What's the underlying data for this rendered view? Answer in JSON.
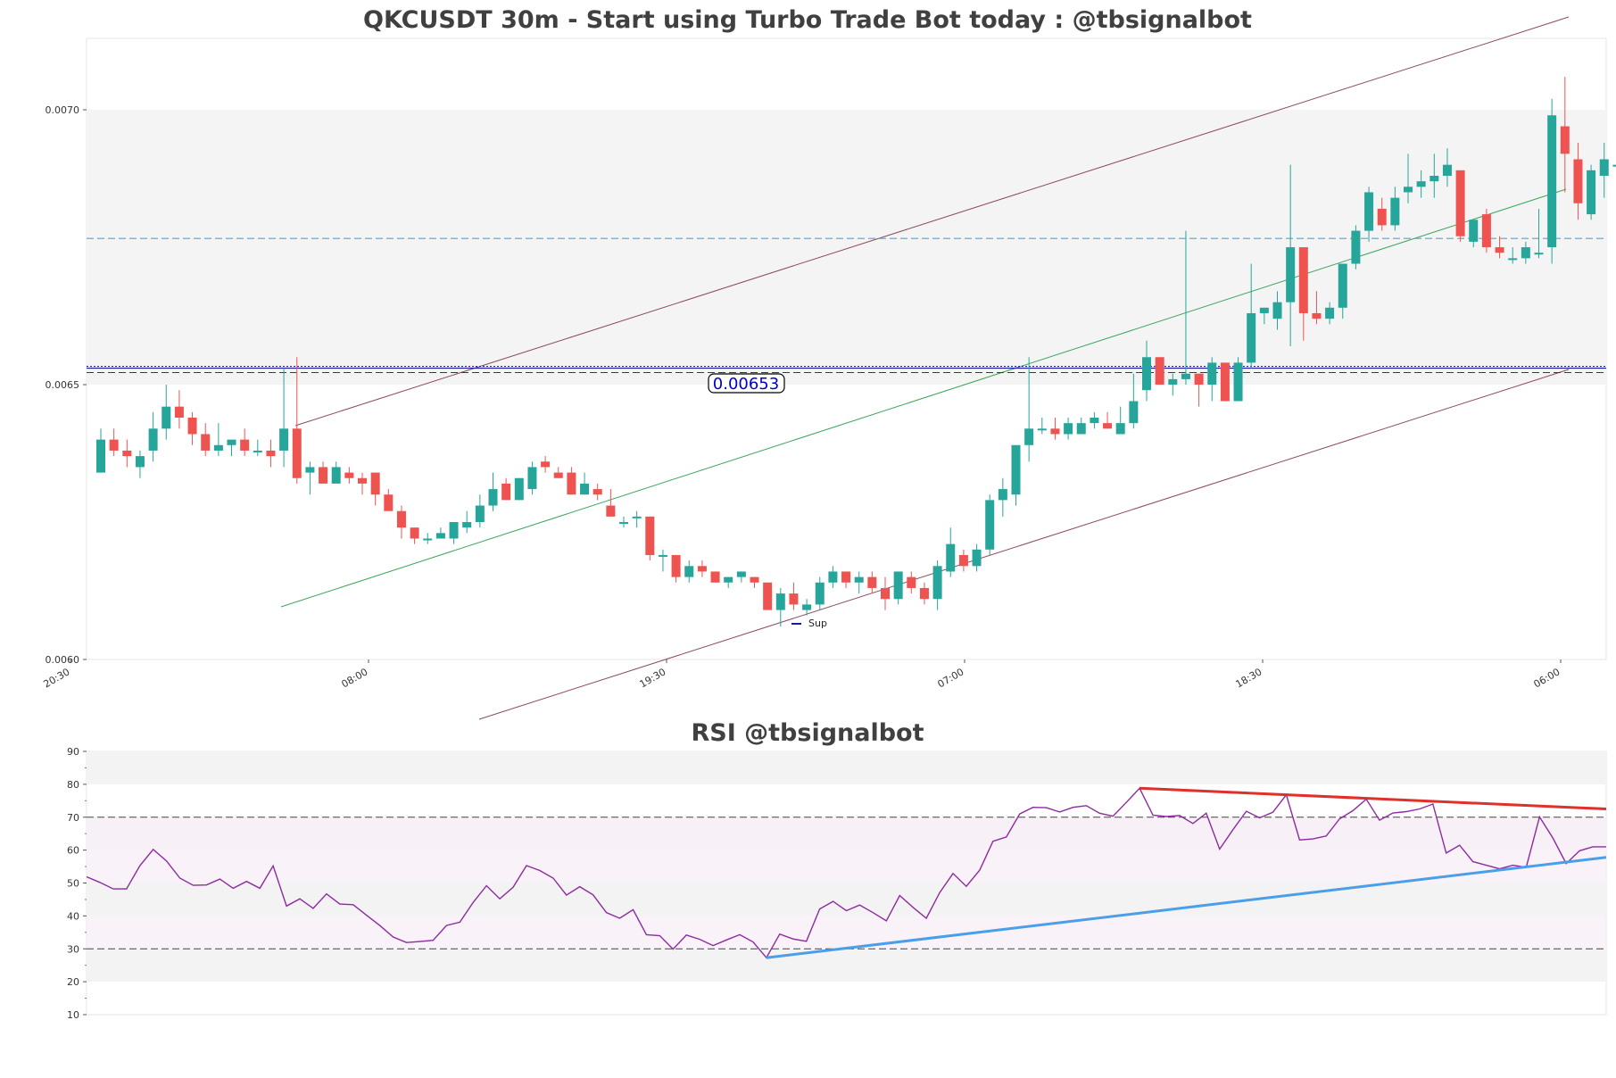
{
  "main_title": "QKCUSDT 30m - Start using Turbo Trade Bot today : @tbsignalbot",
  "rsi_title": "RSI @tbsignalbot",
  "price_label": "0.00653",
  "legend_label": "Sup",
  "colors": {
    "up": "#26a69a",
    "down": "#ef5350",
    "channel": "#8b4a5e",
    "midline": "#3aa55a",
    "support": "#1a1a9e",
    "resistance_dash": "#4fa3d9",
    "rsi_line": "#8e2aa0",
    "rsi_down_trend": "#e0302a",
    "rsi_up_trend": "#4a9fe8"
  },
  "chart_data": [
    {
      "type": "candlestick",
      "title": "QKCUSDT 30m - Start using Turbo Trade Bot today : @tbsignalbot",
      "ylim": [
        0.006,
        0.00713
      ],
      "yticks": [
        "0.0060",
        "0.0065",
        "0.0070"
      ],
      "xticks": [
        "20:30",
        "08:00",
        "19:30",
        "07:00",
        "18:30",
        "06:00"
      ],
      "shaded_band": [
        0.0065,
        0.007
      ],
      "support_level": 0.00653,
      "resistance_level": 0.006766,
      "candles": [
        [
          0.00634,
          0.00642,
          0.00634,
          0.0064
        ],
        [
          0.0064,
          0.00642,
          0.00637,
          0.00638
        ],
        [
          0.00638,
          0.0064,
          0.00635,
          0.00637
        ],
        [
          0.00635,
          0.00638,
          0.00633,
          0.00637
        ],
        [
          0.00638,
          0.00645,
          0.00636,
          0.00642
        ],
        [
          0.00642,
          0.0065,
          0.0064,
          0.00646
        ],
        [
          0.00646,
          0.00649,
          0.00642,
          0.00644
        ],
        [
          0.00644,
          0.00645,
          0.00639,
          0.00641
        ],
        [
          0.00641,
          0.00643,
          0.00637,
          0.00638
        ],
        [
          0.00638,
          0.00643,
          0.00637,
          0.00639
        ],
        [
          0.00639,
          0.0064,
          0.00637,
          0.0064
        ],
        [
          0.0064,
          0.00642,
          0.00637,
          0.00638
        ],
        [
          0.00638,
          0.0064,
          0.00637,
          0.00638
        ],
        [
          0.00638,
          0.0064,
          0.00635,
          0.00637
        ],
        [
          0.00638,
          0.00653,
          0.00635,
          0.00642
        ],
        [
          0.00642,
          0.00655,
          0.00632,
          0.00633
        ],
        [
          0.00634,
          0.00636,
          0.0063,
          0.00635
        ],
        [
          0.00635,
          0.00636,
          0.00632,
          0.00632
        ],
        [
          0.00632,
          0.00636,
          0.00632,
          0.00635
        ],
        [
          0.00634,
          0.00635,
          0.00632,
          0.00633
        ],
        [
          0.00633,
          0.00634,
          0.0063,
          0.00632
        ],
        [
          0.00634,
          0.00634,
          0.00628,
          0.0063
        ],
        [
          0.0063,
          0.00631,
          0.00627,
          0.00627
        ],
        [
          0.00627,
          0.00628,
          0.00622,
          0.00624
        ],
        [
          0.00624,
          0.00624,
          0.00621,
          0.00622
        ],
        [
          0.00622,
          0.00623,
          0.00621,
          0.00622
        ],
        [
          0.00622,
          0.00624,
          0.00622,
          0.00623
        ],
        [
          0.00622,
          0.00625,
          0.00621,
          0.00625
        ],
        [
          0.00624,
          0.00627,
          0.00623,
          0.00625
        ],
        [
          0.00625,
          0.0063,
          0.00624,
          0.00628
        ],
        [
          0.00628,
          0.00634,
          0.00627,
          0.00631
        ],
        [
          0.00632,
          0.00633,
          0.00629,
          0.00629
        ],
        [
          0.00629,
          0.00633,
          0.00629,
          0.00633
        ],
        [
          0.00631,
          0.00636,
          0.0063,
          0.00635
        ],
        [
          0.00636,
          0.00637,
          0.00634,
          0.00635
        ],
        [
          0.00634,
          0.00635,
          0.00633,
          0.00633
        ],
        [
          0.00634,
          0.00635,
          0.0063,
          0.0063
        ],
        [
          0.0063,
          0.00634,
          0.0063,
          0.00632
        ],
        [
          0.00631,
          0.00632,
          0.00629,
          0.0063
        ],
        [
          0.00628,
          0.00631,
          0.00626,
          0.00626
        ],
        [
          0.00625,
          0.00626,
          0.00624,
          0.00625
        ],
        [
          0.00626,
          0.00627,
          0.00624,
          0.00626
        ],
        [
          0.00626,
          0.00626,
          0.00618,
          0.00619
        ],
        [
          0.00619,
          0.0062,
          0.00616,
          0.00619
        ],
        [
          0.00619,
          0.00619,
          0.00614,
          0.00615
        ],
        [
          0.00615,
          0.00618,
          0.00614,
          0.00617
        ],
        [
          0.00617,
          0.00618,
          0.00615,
          0.00616
        ],
        [
          0.00616,
          0.00616,
          0.00614,
          0.00614
        ],
        [
          0.00614,
          0.00615,
          0.00613,
          0.00615
        ],
        [
          0.00615,
          0.00616,
          0.00614,
          0.00616
        ],
        [
          0.00615,
          0.00615,
          0.00613,
          0.00614
        ],
        [
          0.00614,
          0.00614,
          0.00609,
          0.00609
        ],
        [
          0.00609,
          0.00613,
          0.00606,
          0.00612
        ],
        [
          0.00612,
          0.00614,
          0.00609,
          0.0061
        ],
        [
          0.00609,
          0.00611,
          0.00608,
          0.0061
        ],
        [
          0.0061,
          0.00615,
          0.00609,
          0.00614
        ],
        [
          0.00614,
          0.00617,
          0.00613,
          0.00616
        ],
        [
          0.00616,
          0.00616,
          0.00613,
          0.00614
        ],
        [
          0.00614,
          0.00616,
          0.00612,
          0.00615
        ],
        [
          0.00615,
          0.00616,
          0.00612,
          0.00613
        ],
        [
          0.00613,
          0.00615,
          0.00609,
          0.00611
        ],
        [
          0.00611,
          0.00616,
          0.0061,
          0.00616
        ],
        [
          0.00615,
          0.00616,
          0.00612,
          0.00613
        ],
        [
          0.00613,
          0.00614,
          0.0061,
          0.00611
        ],
        [
          0.00611,
          0.00618,
          0.00609,
          0.00617
        ],
        [
          0.00616,
          0.00624,
          0.00615,
          0.00621
        ],
        [
          0.00619,
          0.0062,
          0.00616,
          0.00617
        ],
        [
          0.00617,
          0.00621,
          0.00616,
          0.0062
        ],
        [
          0.0062,
          0.0063,
          0.00619,
          0.00629
        ],
        [
          0.00629,
          0.00633,
          0.00626,
          0.00631
        ],
        [
          0.0063,
          0.00639,
          0.00628,
          0.00639
        ],
        [
          0.00639,
          0.00655,
          0.00636,
          0.00642
        ],
        [
          0.00642,
          0.00644,
          0.00641,
          0.00642
        ],
        [
          0.00642,
          0.00644,
          0.0064,
          0.00641
        ],
        [
          0.00641,
          0.00644,
          0.0064,
          0.00643
        ],
        [
          0.00641,
          0.00644,
          0.00641,
          0.00643
        ],
        [
          0.00643,
          0.00645,
          0.00642,
          0.00644
        ],
        [
          0.00643,
          0.00645,
          0.00642,
          0.00642
        ],
        [
          0.00641,
          0.00646,
          0.00641,
          0.00643
        ],
        [
          0.00643,
          0.00652,
          0.00642,
          0.00647
        ],
        [
          0.00649,
          0.00658,
          0.00647,
          0.00655
        ],
        [
          0.00655,
          0.00655,
          0.0065,
          0.0065
        ],
        [
          0.0065,
          0.00652,
          0.00648,
          0.00651
        ],
        [
          0.00651,
          0.00678,
          0.0065,
          0.00652
        ],
        [
          0.00652,
          0.00652,
          0.00646,
          0.0065
        ],
        [
          0.0065,
          0.00655,
          0.00647,
          0.00654
        ],
        [
          0.00654,
          0.00654,
          0.00647,
          0.00647
        ],
        [
          0.00647,
          0.00655,
          0.00647,
          0.00654
        ],
        [
          0.00654,
          0.00672,
          0.00653,
          0.00663
        ],
        [
          0.00663,
          0.00664,
          0.00661,
          0.00664
        ],
        [
          0.00662,
          0.00667,
          0.0066,
          0.00665
        ],
        [
          0.00665,
          0.0069,
          0.00657,
          0.00675
        ],
        [
          0.00675,
          0.00675,
          0.00658,
          0.00663
        ],
        [
          0.00663,
          0.00667,
          0.00661,
          0.00662
        ],
        [
          0.00662,
          0.00665,
          0.00661,
          0.00664
        ],
        [
          0.00664,
          0.00672,
          0.00662,
          0.00672
        ],
        [
          0.00672,
          0.00679,
          0.00671,
          0.00678
        ],
        [
          0.00678,
          0.00686,
          0.00676,
          0.00685
        ],
        [
          0.00682,
          0.00684,
          0.00678,
          0.00679
        ],
        [
          0.00679,
          0.00686,
          0.00678,
          0.00684
        ],
        [
          0.00685,
          0.00692,
          0.00683,
          0.00686
        ],
        [
          0.00686,
          0.00689,
          0.00684,
          0.00687
        ],
        [
          0.00687,
          0.00692,
          0.00684,
          0.00688
        ],
        [
          0.00688,
          0.00693,
          0.00686,
          0.0069
        ],
        [
          0.00689,
          0.00689,
          0.00676,
          0.00677
        ],
        [
          0.00676,
          0.0068,
          0.00675,
          0.0068
        ],
        [
          0.00681,
          0.00682,
          0.00674,
          0.00675
        ],
        [
          0.00675,
          0.00677,
          0.00673,
          0.00674
        ],
        [
          0.00673,
          0.00675,
          0.00672,
          0.00673
        ],
        [
          0.00673,
          0.00676,
          0.00672,
          0.00675
        ],
        [
          0.00674,
          0.00682,
          0.00673,
          0.00674
        ],
        [
          0.00675,
          0.00702,
          0.00672,
          0.00699
        ],
        [
          0.00697,
          0.00706,
          0.00685,
          0.00692
        ],
        [
          0.00691,
          0.00694,
          0.0068,
          0.00683
        ],
        [
          0.00681,
          0.0069,
          0.0068,
          0.00689
        ],
        [
          0.00688,
          0.00694,
          0.00684,
          0.00691
        ],
        [
          0.0069,
          0.00696,
          0.00687,
          0.0069
        ]
      ]
    },
    {
      "type": "line",
      "title": "RSI @tbsignalbot",
      "ylim": [
        10,
        90
      ],
      "yticks": [
        10,
        20,
        30,
        40,
        50,
        60,
        70,
        80,
        90
      ],
      "overbought": 70,
      "oversold": 30,
      "values": [
        51.9,
        50.2,
        48.2,
        48.2,
        55.3,
        60.2,
        56.7,
        51.5,
        49.3,
        49.4,
        51.2,
        48.4,
        50.5,
        48.4,
        55.2,
        43.0,
        45.2,
        42.3,
        46.7,
        43.6,
        43.4,
        40.2,
        37.1,
        33.6,
        31.9,
        32.2,
        32.6,
        37.1,
        38.1,
        44.1,
        49.2,
        45.2,
        48.7,
        55.3,
        53.8,
        51.5,
        46.3,
        48.9,
        46.4,
        41.0,
        39.3,
        41.9,
        34.3,
        34.0,
        29.9,
        34.2,
        32.9,
        31.0,
        32.7,
        34.3,
        32.1,
        27.3,
        34.5,
        33.0,
        32.3,
        42.1,
        44.4,
        41.6,
        43.3,
        41.0,
        38.5,
        46.2,
        42.6,
        39.3,
        47.1,
        52.9,
        49.0,
        53.9,
        62.7,
        64.0,
        71.0,
        73.0,
        72.9,
        71.6,
        73.0,
        73.5,
        71.2,
        70.3,
        74.5,
        78.8,
        70.6,
        70.2,
        70.5,
        68.1,
        71.2,
        60.3,
        66.2,
        71.8,
        69.8,
        71.5,
        76.8,
        63.1,
        63.4,
        64.3,
        69.5,
        72.0,
        75.5,
        69.1,
        71.3,
        71.7,
        72.5,
        74.0,
        59.1,
        61.5,
        56.5,
        55.4,
        54.3,
        55.4,
        54.8,
        70.1,
        63.7,
        55.9,
        59.8,
        61.0,
        61.0
      ],
      "trendlines": [
        {
          "color": "red",
          "from_index": 79,
          "from_value": 78.8,
          "to_index": 117,
          "to_value": 72.5
        },
        {
          "color": "blue",
          "from_index": 51,
          "from_value": 27.3,
          "to_index": 117,
          "to_value": 57.8
        }
      ]
    }
  ]
}
